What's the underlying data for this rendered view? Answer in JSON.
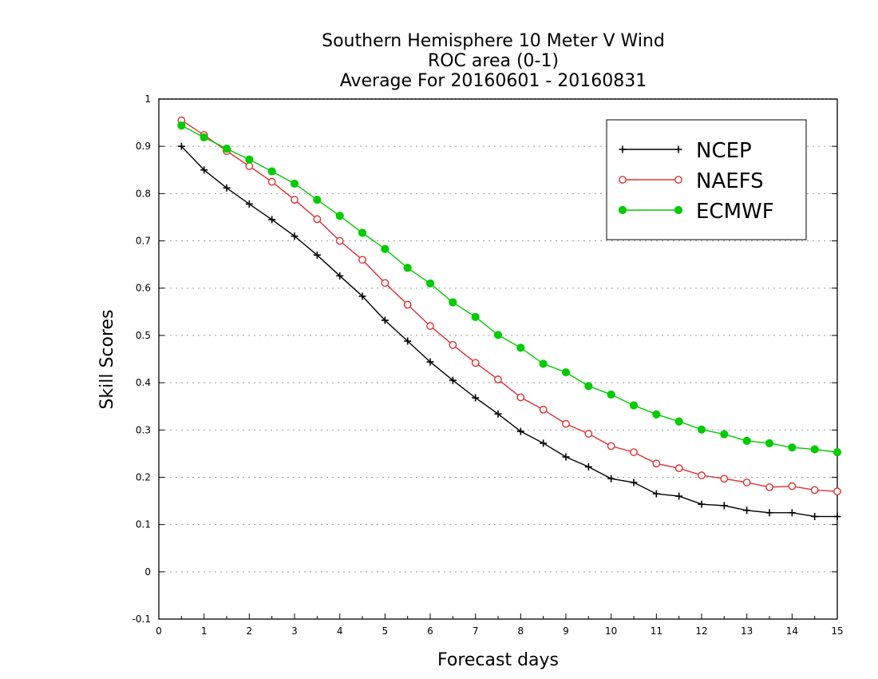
{
  "chart_data": {
    "type": "line",
    "title_lines": [
      "Southern Hemisphere 10 Meter V Wind",
      "ROC area (0-1)",
      "Average For 20160601 - 20160831"
    ],
    "xlabel": "Forecast days",
    "ylabel": "Skill Scores",
    "xlim": [
      0,
      15
    ],
    "ylim": [
      -0.1,
      1
    ],
    "x_ticks": [
      0,
      1,
      2,
      3,
      4,
      5,
      6,
      7,
      8,
      9,
      10,
      11,
      12,
      13,
      14,
      15
    ],
    "y_ticks": [
      -0.1,
      0,
      0.1,
      0.2,
      0.3,
      0.4,
      0.5,
      0.6,
      0.7,
      0.8,
      0.9,
      1
    ],
    "y_tick_labels": [
      "-0.1",
      "0",
      "0.1",
      "0.2",
      "0.3",
      "0.4",
      "0.5",
      "0.6",
      "0.7",
      "0.8",
      "0.9",
      "1"
    ],
    "grid": "horizontal dotted",
    "legend_position": "top-right",
    "x": [
      0.5,
      1,
      1.5,
      2,
      2.5,
      3,
      3.5,
      4,
      4.5,
      5,
      5.5,
      6,
      6.5,
      7,
      7.5,
      8,
      8.5,
      9,
      9.5,
      10,
      10.5,
      11,
      11.5,
      12,
      12.5,
      13,
      13.5,
      14,
      14.5,
      15
    ],
    "series": [
      {
        "name": "NCEP",
        "color": "#000000",
        "marker": "plus",
        "values": [
          0.9,
          0.85,
          0.812,
          0.778,
          0.745,
          0.71,
          0.67,
          0.626,
          0.583,
          0.532,
          0.488,
          0.444,
          0.405,
          0.368,
          0.334,
          0.297,
          0.272,
          0.243,
          0.222,
          0.197,
          0.189,
          0.165,
          0.16,
          0.143,
          0.14,
          0.13,
          0.125,
          0.125,
          0.117,
          0.117
        ]
      },
      {
        "name": "NAEFS",
        "color": "#e03030",
        "marker": "open-circle",
        "values": [
          0.955,
          0.924,
          0.89,
          0.858,
          0.825,
          0.787,
          0.746,
          0.7,
          0.66,
          0.611,
          0.565,
          0.52,
          0.48,
          0.442,
          0.407,
          0.369,
          0.343,
          0.313,
          0.292,
          0.266,
          0.253,
          0.229,
          0.219,
          0.204,
          0.197,
          0.189,
          0.179,
          0.181,
          0.173,
          0.17
        ]
      },
      {
        "name": "ECMWF",
        "color": "#00cc00",
        "marker": "filled-circle",
        "values": [
          0.944,
          0.919,
          0.895,
          0.872,
          0.847,
          0.821,
          0.787,
          0.753,
          0.717,
          0.683,
          0.643,
          0.61,
          0.57,
          0.539,
          0.501,
          0.474,
          0.44,
          0.422,
          0.393,
          0.375,
          0.352,
          0.333,
          0.318,
          0.301,
          0.291,
          0.277,
          0.272,
          0.263,
          0.259,
          0.253
        ]
      }
    ]
  }
}
